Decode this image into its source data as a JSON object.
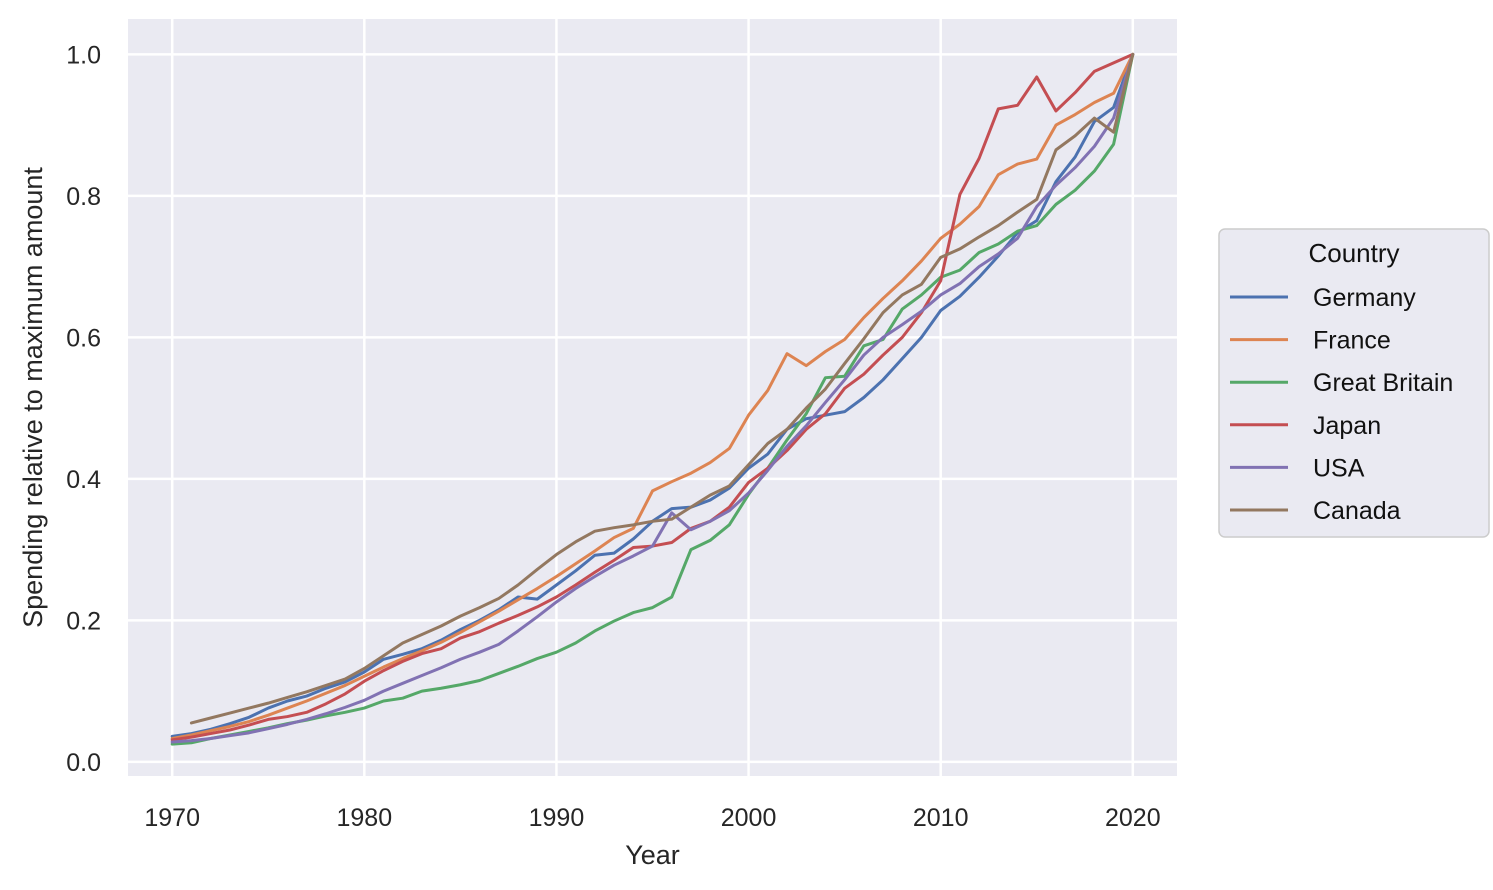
{
  "chart_data": {
    "type": "line",
    "xlabel": "Year",
    "ylabel": "Spending relative to maximum amount",
    "xlim": [
      1967.7,
      2022.3
    ],
    "ylim": [
      -0.02,
      1.05
    ],
    "x_ticks": [
      1970,
      1980,
      1990,
      2000,
      2010,
      2020
    ],
    "x_tick_labels": [
      "1970",
      "1980",
      "1990",
      "2000",
      "2010",
      "2020"
    ],
    "y_ticks": [
      0.0,
      0.2,
      0.4,
      0.6,
      0.8,
      1.0
    ],
    "y_tick_labels": [
      "0.0",
      "0.2",
      "0.4",
      "0.6",
      "0.8",
      "1.0"
    ],
    "grid": true,
    "background": "#eaeaf2",
    "legend": {
      "title": "Country",
      "position": "right-outside"
    },
    "series": [
      {
        "name": "Germany",
        "color": "#4c72b0",
        "x": [
          1970,
          1971,
          1972,
          1973,
          1974,
          1975,
          1976,
          1977,
          1978,
          1979,
          1980,
          1981,
          1982,
          1983,
          1984,
          1985,
          1986,
          1987,
          1988,
          1989,
          1990,
          1991,
          1992,
          1993,
          1994,
          1995,
          1996,
          1997,
          1998,
          1999,
          2000,
          2001,
          2002,
          2003,
          2004,
          2005,
          2006,
          2007,
          2008,
          2009,
          2010,
          2011,
          2012,
          2013,
          2014,
          2015,
          2016,
          2017,
          2018,
          2019,
          2020
        ],
        "y": [
          0.036,
          0.04,
          0.046,
          0.054,
          0.063,
          0.076,
          0.086,
          0.093,
          0.104,
          0.113,
          0.127,
          0.145,
          0.152,
          0.16,
          0.172,
          0.187,
          0.2,
          0.215,
          0.233,
          0.23,
          0.25,
          0.27,
          0.292,
          0.295,
          0.315,
          0.34,
          0.358,
          0.36,
          0.37,
          0.387,
          0.415,
          0.435,
          0.47,
          0.485,
          0.49,
          0.495,
          0.515,
          0.54,
          0.57,
          0.6,
          0.638,
          0.658,
          0.685,
          0.715,
          0.748,
          0.765,
          0.82,
          0.855,
          0.905,
          0.925,
          1.0
        ]
      },
      {
        "name": "France",
        "color": "#dd8452",
        "x": [
          1970,
          1971,
          1972,
          1973,
          1974,
          1975,
          1976,
          1977,
          1978,
          1979,
          1980,
          1981,
          1982,
          1983,
          1984,
          1985,
          1986,
          1987,
          1988,
          1989,
          1990,
          1991,
          1992,
          1993,
          1994,
          1995,
          1996,
          1997,
          1998,
          1999,
          2000,
          2001,
          2002,
          2003,
          2004,
          2005,
          2006,
          2007,
          2008,
          2009,
          2010,
          2011,
          2012,
          2013,
          2014,
          2015,
          2016,
          2017,
          2018,
          2019,
          2020
        ],
        "y": [
          0.033,
          0.038,
          0.044,
          0.05,
          0.057,
          0.066,
          0.076,
          0.086,
          0.097,
          0.108,
          0.121,
          0.134,
          0.146,
          0.157,
          0.169,
          0.183,
          0.198,
          0.213,
          0.229,
          0.245,
          0.262,
          0.28,
          0.298,
          0.317,
          0.33,
          0.383,
          0.396,
          0.408,
          0.423,
          0.443,
          0.49,
          0.525,
          0.577,
          0.56,
          0.58,
          0.597,
          0.628,
          0.655,
          0.68,
          0.708,
          0.74,
          0.76,
          0.785,
          0.83,
          0.845,
          0.852,
          0.9,
          0.915,
          0.932,
          0.945,
          1.0
        ]
      },
      {
        "name": "Great Britain",
        "color": "#55a868",
        "x": [
          1970,
          1971,
          1972,
          1973,
          1974,
          1975,
          1976,
          1977,
          1978,
          1979,
          1980,
          1981,
          1982,
          1983,
          1984,
          1985,
          1986,
          1987,
          1988,
          1989,
          1990,
          1991,
          1992,
          1993,
          1994,
          1995,
          1996,
          1997,
          1998,
          1999,
          2000,
          2001,
          2002,
          2003,
          2004,
          2005,
          2006,
          2007,
          2008,
          2009,
          2010,
          2011,
          2012,
          2013,
          2014,
          2015,
          2016,
          2017,
          2018,
          2019,
          2020
        ],
        "y": [
          0.025,
          0.027,
          0.033,
          0.038,
          0.043,
          0.048,
          0.054,
          0.059,
          0.065,
          0.07,
          0.076,
          0.086,
          0.09,
          0.1,
          0.104,
          0.109,
          0.115,
          0.125,
          0.135,
          0.146,
          0.155,
          0.168,
          0.185,
          0.199,
          0.211,
          0.218,
          0.233,
          0.3,
          0.313,
          0.335,
          0.378,
          0.415,
          0.455,
          0.492,
          0.543,
          0.545,
          0.588,
          0.597,
          0.64,
          0.66,
          0.685,
          0.695,
          0.72,
          0.732,
          0.75,
          0.758,
          0.788,
          0.808,
          0.835,
          0.873,
          1.0
        ]
      },
      {
        "name": "Japan",
        "color": "#c44e52",
        "x": [
          1970,
          1971,
          1972,
          1973,
          1974,
          1975,
          1976,
          1977,
          1978,
          1979,
          1980,
          1981,
          1982,
          1983,
          1984,
          1985,
          1986,
          1987,
          1988,
          1989,
          1990,
          1991,
          1992,
          1993,
          1994,
          1995,
          1996,
          1997,
          1998,
          1999,
          2000,
          2001,
          2002,
          2003,
          2004,
          2005,
          2006,
          2007,
          2008,
          2009,
          2010,
          2011,
          2012,
          2013,
          2014,
          2015,
          2016,
          2017,
          2018,
          2019,
          2020
        ],
        "y": [
          0.031,
          0.035,
          0.04,
          0.045,
          0.052,
          0.06,
          0.064,
          0.07,
          0.082,
          0.096,
          0.114,
          0.129,
          0.142,
          0.153,
          0.16,
          0.175,
          0.184,
          0.196,
          0.207,
          0.219,
          0.233,
          0.25,
          0.268,
          0.285,
          0.303,
          0.305,
          0.31,
          0.33,
          0.34,
          0.36,
          0.395,
          0.415,
          0.44,
          0.47,
          0.492,
          0.528,
          0.548,
          0.575,
          0.6,
          0.635,
          0.68,
          0.802,
          0.853,
          0.923,
          0.928,
          0.968,
          0.92,
          0.946,
          0.976,
          0.988,
          1.0
        ]
      },
      {
        "name": "USA",
        "color": "#8172b3",
        "x": [
          1970,
          1971,
          1972,
          1973,
          1974,
          1975,
          1976,
          1977,
          1978,
          1979,
          1980,
          1981,
          1982,
          1983,
          1984,
          1985,
          1986,
          1987,
          1988,
          1989,
          1990,
          1991,
          1992,
          1993,
          1994,
          1995,
          1996,
          1997,
          1998,
          1999,
          2000,
          2001,
          2002,
          2003,
          2004,
          2005,
          2006,
          2007,
          2008,
          2009,
          2010,
          2011,
          2012,
          2013,
          2014,
          2015,
          2016,
          2017,
          2018,
          2019,
          2020
        ],
        "y": [
          0.028,
          0.03,
          0.033,
          0.037,
          0.041,
          0.047,
          0.053,
          0.06,
          0.068,
          0.077,
          0.087,
          0.1,
          0.111,
          0.122,
          0.133,
          0.145,
          0.155,
          0.166,
          0.185,
          0.205,
          0.226,
          0.245,
          0.262,
          0.278,
          0.291,
          0.305,
          0.352,
          0.328,
          0.34,
          0.355,
          0.38,
          0.412,
          0.446,
          0.475,
          0.508,
          0.54,
          0.575,
          0.6,
          0.618,
          0.637,
          0.66,
          0.676,
          0.7,
          0.718,
          0.74,
          0.785,
          0.815,
          0.84,
          0.87,
          0.91,
          1.0
        ]
      },
      {
        "name": "Canada",
        "color": "#937860",
        "x": [
          1971,
          1972,
          1973,
          1974,
          1975,
          1976,
          1977,
          1978,
          1979,
          1980,
          1981,
          1982,
          1983,
          1984,
          1985,
          1986,
          1987,
          1988,
          1989,
          1990,
          1991,
          1992,
          1993,
          1994,
          1995,
          1996,
          1997,
          1998,
          1999,
          2000,
          2001,
          2002,
          2003,
          2004,
          2005,
          2006,
          2007,
          2008,
          2009,
          2010,
          2011,
          2012,
          2013,
          2014,
          2015,
          2016,
          2017,
          2018,
          2019,
          2020
        ],
        "y": [
          0.055,
          0.062,
          0.069,
          0.076,
          0.083,
          0.091,
          0.099,
          0.108,
          0.117,
          0.132,
          0.15,
          0.168,
          0.18,
          0.192,
          0.206,
          0.218,
          0.231,
          0.25,
          0.272,
          0.293,
          0.311,
          0.326,
          0.331,
          0.335,
          0.34,
          0.343,
          0.36,
          0.377,
          0.39,
          0.42,
          0.45,
          0.47,
          0.5,
          0.527,
          0.563,
          0.598,
          0.635,
          0.66,
          0.675,
          0.713,
          0.725,
          0.742,
          0.758,
          0.777,
          0.795,
          0.865,
          0.885,
          0.91,
          0.89,
          1.0
        ]
      }
    ]
  }
}
